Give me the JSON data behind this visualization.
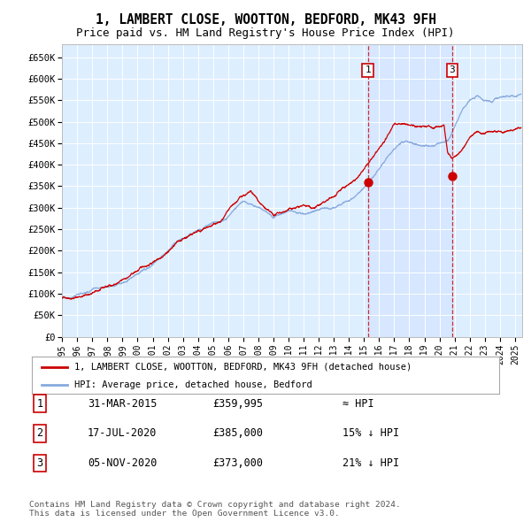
{
  "title": "1, LAMBERT CLOSE, WOOTTON, BEDFORD, MK43 9FH",
  "subtitle": "Price paid vs. HM Land Registry's House Price Index (HPI)",
  "ylabel_ticks": [
    "£0",
    "£50K",
    "£100K",
    "£150K",
    "£200K",
    "£250K",
    "£300K",
    "£350K",
    "£400K",
    "£450K",
    "£500K",
    "£550K",
    "£600K",
    "£650K"
  ],
  "ytick_values": [
    0,
    50000,
    100000,
    150000,
    200000,
    250000,
    300000,
    350000,
    400000,
    450000,
    500000,
    550000,
    600000,
    650000
  ],
  "ylim": [
    0,
    680000
  ],
  "xlim_start": 1995.0,
  "xlim_end": 2025.5,
  "sale1": {
    "date_num": 2015.25,
    "price": 359995,
    "label": "1"
  },
  "sale2": {
    "date_num": 2020.54,
    "price": 385000,
    "label": "2"
  },
  "sale3": {
    "date_num": 2020.84,
    "price": 373000,
    "label": "3"
  },
  "hpi_line_color": "#88aadd",
  "price_line_color": "#cc0000",
  "sale_marker_color": "#cc0000",
  "vline_color": "#cc0000",
  "background_color": "#ffffff",
  "plot_bg_color": "#ddeeff",
  "grid_color": "#ffffff",
  "legend_label_price": "1, LAMBERT CLOSE, WOOTTON, BEDFORD, MK43 9FH (detached house)",
  "legend_label_hpi": "HPI: Average price, detached house, Bedford",
  "table_rows": [
    {
      "num": "1",
      "date": "31-MAR-2015",
      "price": "£359,995",
      "relation": "≈ HPI"
    },
    {
      "num": "2",
      "date": "17-JUL-2020",
      "price": "£385,000",
      "relation": "15% ↓ HPI"
    },
    {
      "num": "3",
      "date": "05-NOV-2020",
      "price": "£373,000",
      "relation": "21% ↓ HPI"
    }
  ],
  "footer": "Contains HM Land Registry data © Crown copyright and database right 2024.\nThis data is licensed under the Open Government Licence v3.0.",
  "xtick_years": [
    1995,
    1996,
    1997,
    1998,
    1999,
    2000,
    2001,
    2002,
    2003,
    2004,
    2005,
    2006,
    2007,
    2008,
    2009,
    2010,
    2011,
    2012,
    2013,
    2014,
    2015,
    2016,
    2017,
    2018,
    2019,
    2020,
    2021,
    2022,
    2023,
    2024,
    2025
  ]
}
